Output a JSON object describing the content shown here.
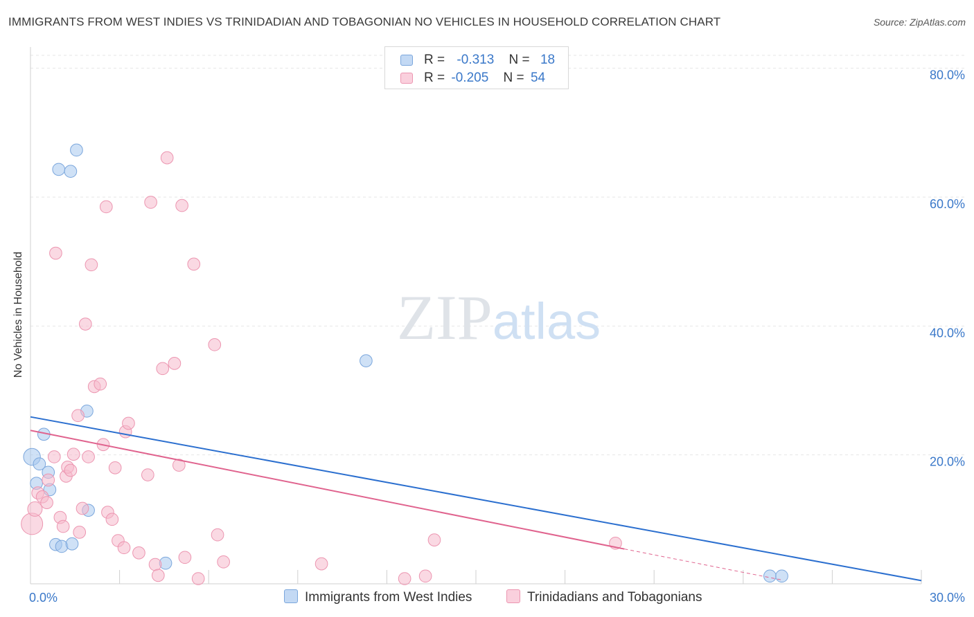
{
  "chart_data": {
    "type": "scatter",
    "title": "IMMIGRANTS FROM WEST INDIES VS TRINIDADIAN AND TOBAGONIAN NO VEHICLES IN HOUSEHOLD CORRELATION CHART",
    "source": "Source: ZipAtlas.com",
    "ylabel": "No Vehicles in Household",
    "xlabel": "",
    "xlim": [
      0,
      30
    ],
    "ylim": [
      0,
      82
    ],
    "x_tick_labels": [
      "0.0%",
      "30.0%"
    ],
    "y_ticks": [
      20,
      40,
      60,
      80
    ],
    "y_tick_labels": [
      "20.0%",
      "40.0%",
      "60.0%",
      "80.0%"
    ],
    "watermark": "ZIPatlas",
    "legend": {
      "rows": [
        {
          "r_label": "R =",
          "r_value": "-0.313",
          "n_label": "N =",
          "n_value": "18"
        },
        {
          "r_label": "R =",
          "r_value": "-0.205",
          "n_label": "N =",
          "n_value": "54"
        }
      ]
    },
    "series": [
      {
        "name": "Immigrants from West Indies",
        "color": "#a8c8ee",
        "stroke": "#7aa6dc",
        "line_color": "#2b6fcf",
        "trend": {
          "x0": 0,
          "y0": 25.9,
          "x1": 30,
          "y1": 0.5
        },
        "points": [
          {
            "x": 0.05,
            "y": 19.7,
            "s": 14
          },
          {
            "x": 0.3,
            "y": 18.6,
            "s": 10
          },
          {
            "x": 0.2,
            "y": 15.6,
            "s": 10
          },
          {
            "x": 0.45,
            "y": 23.2,
            "s": 10
          },
          {
            "x": 0.6,
            "y": 17.3,
            "s": 10
          },
          {
            "x": 0.65,
            "y": 14.6,
            "s": 10
          },
          {
            "x": 0.85,
            "y": 6.1,
            "s": 10
          },
          {
            "x": 1.05,
            "y": 5.8,
            "s": 10
          },
          {
            "x": 1.4,
            "y": 6.2,
            "s": 10
          },
          {
            "x": 0.95,
            "y": 64.3,
            "s": 10
          },
          {
            "x": 1.35,
            "y": 64.0,
            "s": 10
          },
          {
            "x": 1.55,
            "y": 67.3,
            "s": 10
          },
          {
            "x": 1.9,
            "y": 26.8,
            "s": 10
          },
          {
            "x": 1.95,
            "y": 11.4,
            "s": 10
          },
          {
            "x": 4.55,
            "y": 3.2,
            "s": 10
          },
          {
            "x": 11.3,
            "y": 34.6,
            "s": 10
          },
          {
            "x": 24.9,
            "y": 1.2,
            "s": 10
          },
          {
            "x": 25.3,
            "y": 1.2,
            "s": 10
          }
        ]
      },
      {
        "name": "Trinidadians and Tobagonians",
        "color": "#f6b9cc",
        "stroke": "#ec95b0",
        "line_color": "#e0638e",
        "trend": {
          "x0": 0,
          "y0": 23.8,
          "x1": 20.0,
          "y1": 5.4,
          "dash_x1": 25.3,
          "dash_y1": 0.6
        },
        "points": [
          {
            "x": 0.05,
            "y": 9.3,
            "s": 18
          },
          {
            "x": 0.15,
            "y": 11.6,
            "s": 12
          },
          {
            "x": 0.25,
            "y": 14.1,
            "s": 10
          },
          {
            "x": 0.4,
            "y": 13.5,
            "s": 10
          },
          {
            "x": 0.55,
            "y": 12.6,
            "s": 10
          },
          {
            "x": 0.6,
            "y": 16.1,
            "s": 10
          },
          {
            "x": 0.8,
            "y": 19.7,
            "s": 10
          },
          {
            "x": 0.85,
            "y": 51.3,
            "s": 10
          },
          {
            "x": 1.0,
            "y": 10.3,
            "s": 10
          },
          {
            "x": 1.1,
            "y": 8.9,
            "s": 10
          },
          {
            "x": 1.2,
            "y": 16.7,
            "s": 10
          },
          {
            "x": 1.25,
            "y": 18.1,
            "s": 10
          },
          {
            "x": 1.35,
            "y": 17.6,
            "s": 10
          },
          {
            "x": 1.45,
            "y": 20.1,
            "s": 10
          },
          {
            "x": 1.6,
            "y": 26.1,
            "s": 10
          },
          {
            "x": 1.65,
            "y": 8.0,
            "s": 10
          },
          {
            "x": 1.75,
            "y": 11.7,
            "s": 10
          },
          {
            "x": 1.85,
            "y": 40.3,
            "s": 10
          },
          {
            "x": 1.95,
            "y": 19.7,
            "s": 10
          },
          {
            "x": 2.05,
            "y": 49.5,
            "s": 10
          },
          {
            "x": 2.15,
            "y": 30.6,
            "s": 10
          },
          {
            "x": 2.35,
            "y": 31.0,
            "s": 10
          },
          {
            "x": 2.45,
            "y": 21.6,
            "s": 10
          },
          {
            "x": 2.55,
            "y": 58.5,
            "s": 10
          },
          {
            "x": 2.6,
            "y": 11.1,
            "s": 10
          },
          {
            "x": 2.75,
            "y": 10.0,
            "s": 10
          },
          {
            "x": 2.85,
            "y": 18.0,
            "s": 10
          },
          {
            "x": 2.95,
            "y": 6.7,
            "s": 10
          },
          {
            "x": 3.15,
            "y": 5.6,
            "s": 10
          },
          {
            "x": 3.2,
            "y": 23.6,
            "s": 10
          },
          {
            "x": 3.3,
            "y": 24.9,
            "s": 10
          },
          {
            "x": 3.65,
            "y": 4.8,
            "s": 10
          },
          {
            "x": 3.95,
            "y": 16.9,
            "s": 10
          },
          {
            "x": 4.05,
            "y": 59.2,
            "s": 10
          },
          {
            "x": 4.2,
            "y": 3.0,
            "s": 10
          },
          {
            "x": 4.3,
            "y": 1.3,
            "s": 10
          },
          {
            "x": 4.45,
            "y": 33.4,
            "s": 10
          },
          {
            "x": 4.6,
            "y": 66.1,
            "s": 10
          },
          {
            "x": 4.85,
            "y": 34.2,
            "s": 10
          },
          {
            "x": 5.0,
            "y": 18.4,
            "s": 10
          },
          {
            "x": 5.1,
            "y": 58.7,
            "s": 10
          },
          {
            "x": 5.2,
            "y": 4.1,
            "s": 10
          },
          {
            "x": 5.5,
            "y": 49.6,
            "s": 10
          },
          {
            "x": 5.65,
            "y": 0.8,
            "s": 10
          },
          {
            "x": 6.2,
            "y": 37.1,
            "s": 10
          },
          {
            "x": 6.3,
            "y": 7.6,
            "s": 10
          },
          {
            "x": 6.5,
            "y": 3.4,
            "s": 10
          },
          {
            "x": 9.8,
            "y": 3.1,
            "s": 10
          },
          {
            "x": 12.6,
            "y": 0.8,
            "s": 10
          },
          {
            "x": 13.3,
            "y": 1.2,
            "s": 10
          },
          {
            "x": 13.6,
            "y": 6.8,
            "s": 10
          },
          {
            "x": 19.7,
            "y": 6.3,
            "s": 10
          },
          {
            "x": 2.45,
            "y": 0.0,
            "s": 0
          },
          {
            "x": 2.45,
            "y": 0.0,
            "s": 0
          }
        ]
      }
    ]
  }
}
